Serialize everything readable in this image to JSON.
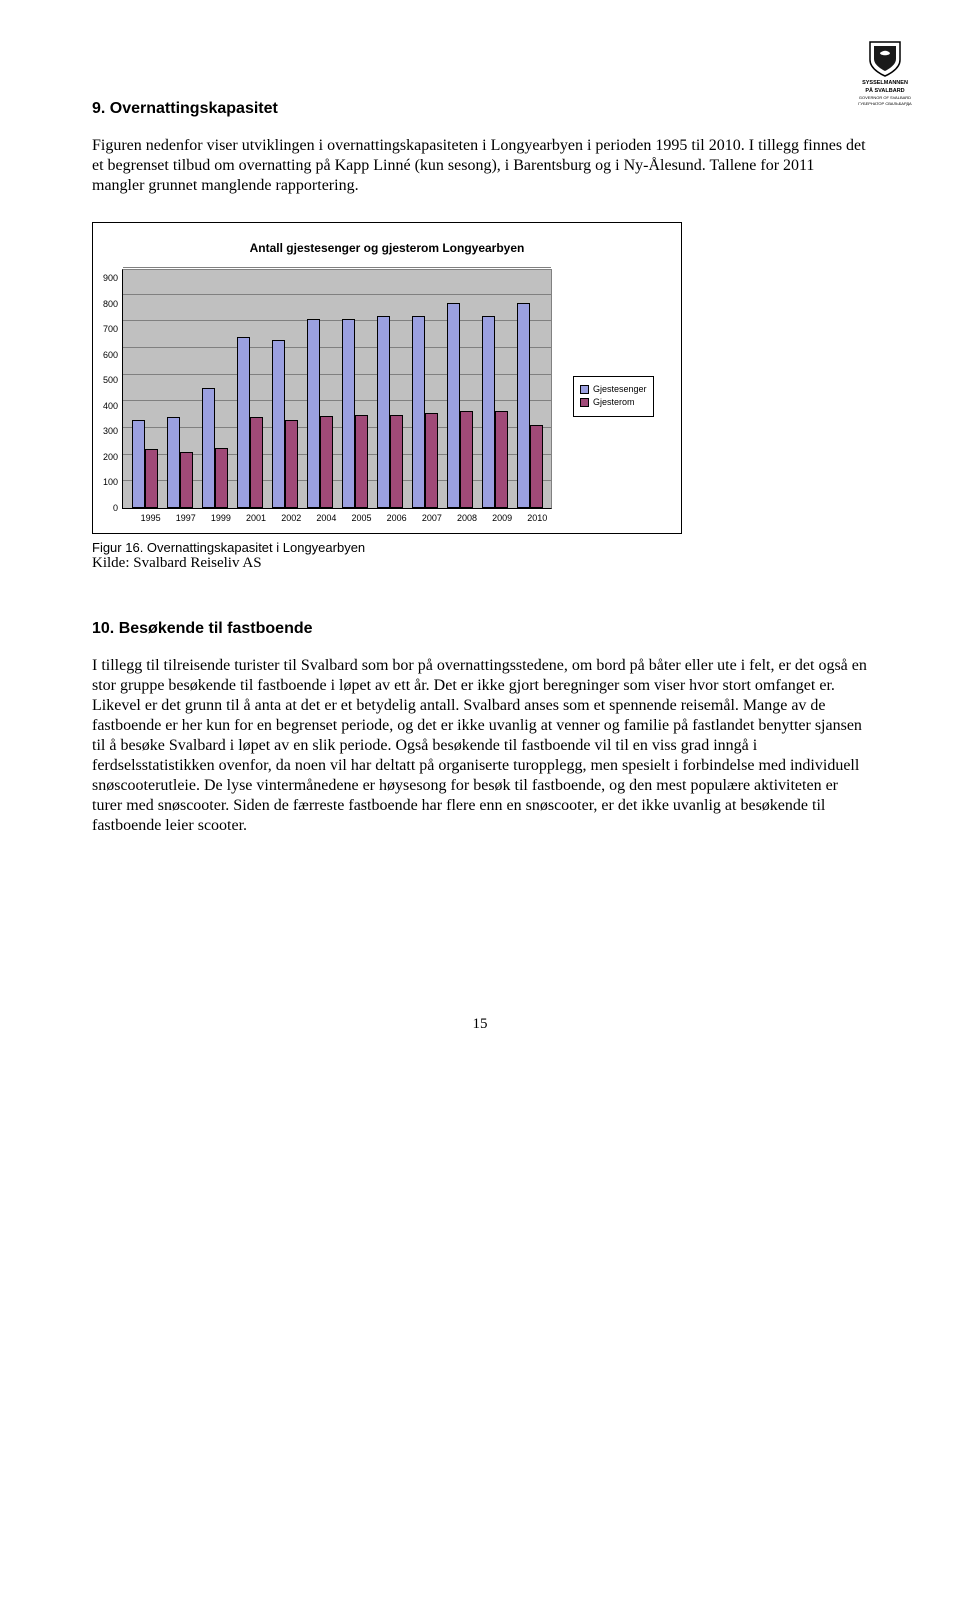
{
  "logo": {
    "line1": "SYSSELMANNEN",
    "line2": "PÅ SVALBARD",
    "sub1": "GOVERNOR OF SVALBARD",
    "sub2": "ГУБЕРНАТОР СВАЛЬБАРДА"
  },
  "section9": {
    "heading": "9. Overnattingskapasitet",
    "para": "Figuren nedenfor viser utviklingen i overnattingskapasiteten i Longyearbyen i perioden 1995 til 2010. I tillegg finnes det et begrenset tilbud om overnatting på Kapp Linné (kun sesong), i Barentsburg og i Ny-Ålesund. Tallene for 2011 mangler grunnet manglende rapportering."
  },
  "chart": {
    "title": "Antall gjestesenger og gjesterom Longyearbyen",
    "type": "bar",
    "ylim": [
      0,
      900
    ],
    "ytick_step": 100,
    "yticks": [
      "900",
      "800",
      "700",
      "600",
      "500",
      "400",
      "300",
      "200",
      "100",
      "0"
    ],
    "categories": [
      "1995",
      "1997",
      "1999",
      "2001",
      "2002",
      "2004",
      "2005",
      "2006",
      "2007",
      "2008",
      "2009",
      "2010"
    ],
    "series": [
      {
        "name": "Gjestesenger",
        "color": "#9ba0e0",
        "values": [
          330,
          340,
          450,
          640,
          630,
          710,
          710,
          720,
          720,
          770,
          720,
          770
        ]
      },
      {
        "name": "Gjesterom",
        "color": "#a04a78",
        "values": [
          220,
          210,
          225,
          340,
          330,
          345,
          350,
          350,
          355,
          365,
          365,
          310
        ]
      }
    ],
    "background_color": "#c0c0c0",
    "grid_color": "#808080",
    "bar_border": "#000000",
    "fontsize_ticks": 9,
    "fontsize_title": 12
  },
  "caption": {
    "line1": "Figur 16. Overnattingskapasitet i Longyearbyen",
    "line2": "Kilde: Svalbard Reiseliv AS"
  },
  "section10": {
    "heading": "10. Besøkende til fastboende",
    "para": "I tillegg til tilreisende turister til Svalbard som bor på overnattingsstedene, om bord på båter eller ute i felt, er det også en stor gruppe besøkende til fastboende i løpet av ett år. Det er ikke gjort beregninger som viser hvor stort omfanget er. Likevel er det grunn til å anta at det er et betydelig antall. Svalbard anses som et spennende reisemål. Mange av de fastboende er her kun for en begrenset periode, og det er ikke uvanlig at venner og familie på fastlandet benytter sjansen til å besøke Svalbard i løpet av en slik periode. Også besøkende til fastboende vil til en viss grad inngå i ferdselsstatistikken ovenfor, da noen vil har deltatt på organiserte turopplegg, men spesielt i forbindelse med individuell snøscooterutleie. De lyse vintermånedene er høysesong for besøk til fastboende, og den mest populære aktiviteten er turer med snøscooter. Siden de færreste fastboende har flere enn en snøscooter, er det ikke uvanlig at besøkende til fastboende leier scooter."
  },
  "page_number": "15"
}
